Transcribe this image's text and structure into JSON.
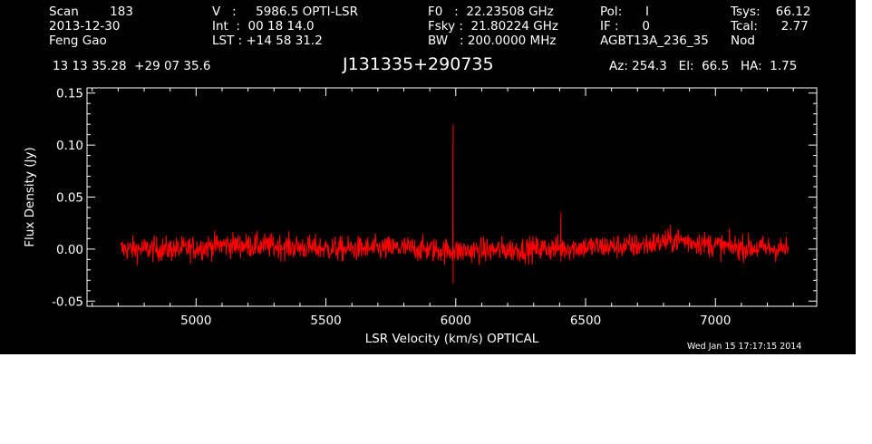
{
  "header": {
    "col1": [
      "Scan        183",
      "2013-12-30",
      "Feng Gao"
    ],
    "col2": [
      "V   :     5986.5 OPTI-LSR",
      "Int  :  00 18 14.0",
      "LST : +14 58 31.2"
    ],
    "col3": [
      "F0   :  22.23508 GHz",
      "Fsky :  21.80224 GHz",
      "BW   : 200.0000 MHz"
    ],
    "col4": [
      "Pol:      I",
      "IF :      0",
      "AGBT13A_236_35"
    ],
    "col5": [
      "Tsys:    66.12",
      "Tcal:      2.77",
      "Nod"
    ],
    "coords": "13 13 35.28  +29 07 35.6",
    "source": "J131335+290735",
    "azel": "Az: 254.3   El:  66.5   HA:  1.75",
    "date": "Wed Jan 15 17:17:15 2014"
  },
  "chart_data": {
    "type": "line",
    "xlabel": "LSR Velocity (km/s) OPTICAL",
    "ylabel": "Flux Density (Jy)",
    "xlim": [
      4580,
      7390
    ],
    "ylim": [
      -0.055,
      0.155
    ],
    "xticks": [
      5000,
      5500,
      6000,
      6500,
      7000
    ],
    "xtick_labels": [
      "5000",
      "5500",
      "6000",
      "6500",
      "7000"
    ],
    "yticks": [
      -0.05,
      0.0,
      0.05,
      0.1,
      0.15
    ],
    "ytick_labels": [
      "-0.05",
      "0.00",
      "0.05",
      "0.10",
      "0.15"
    ],
    "line_color": "#ff0000",
    "series": [
      {
        "x_range": [
          4710,
          7280
        ],
        "noise_rms": 0.006,
        "baseline": [
          [
            4710,
            0.0
          ],
          [
            4950,
            0.0
          ],
          [
            5100,
            0.004
          ],
          [
            5300,
            0.003
          ],
          [
            5550,
            0.0
          ],
          [
            5800,
            0.001
          ],
          [
            6000,
            -0.002
          ],
          [
            6300,
            0.0
          ],
          [
            6500,
            0.002
          ],
          [
            6700,
            0.003
          ],
          [
            6850,
            0.009
          ],
          [
            7050,
            0.002
          ],
          [
            7280,
            0.0
          ]
        ],
        "features": [
          {
            "x": 5990,
            "ymax": 0.12,
            "ymin": -0.033
          },
          {
            "x": 6405,
            "ymax": 0.035,
            "ymin": -0.012
          }
        ]
      }
    ]
  }
}
